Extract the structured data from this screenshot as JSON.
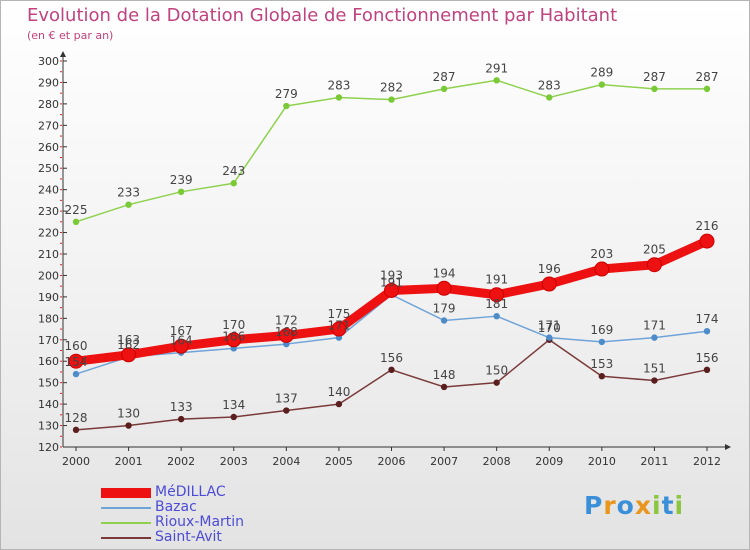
{
  "title": "Evolution de la Dotation Globale de Fonctionnement par Habitant",
  "subtitle": "(en € et par an)",
  "logo": {
    "letters": [
      "P",
      "r",
      "o",
      "x",
      "i",
      "t",
      "i"
    ]
  },
  "chart_data": {
    "type": "line",
    "title": "Evolution de la Dotation Globale de Fonctionnement par Habitant",
    "ylabel": "(en € et par an)",
    "xlabel": "",
    "ylim": [
      120,
      300
    ],
    "grid": false,
    "x": [
      "2000",
      "2001",
      "2002",
      "2003",
      "2004",
      "2005",
      "2006",
      "2007",
      "2008",
      "2009",
      "2010",
      "2011",
      "2012"
    ],
    "yticks": [
      120,
      130,
      140,
      150,
      160,
      170,
      180,
      190,
      200,
      210,
      220,
      230,
      240,
      250,
      260,
      270,
      280,
      290,
      300
    ],
    "series": [
      {
        "name": "Rioux-Martin",
        "color": "#8fd14f",
        "marker": "#7ac936",
        "values": [
          225,
          233,
          239,
          243,
          279,
          283,
          282,
          287,
          291,
          283,
          289,
          287,
          287
        ]
      },
      {
        "name": "Saint-Avit",
        "color": "#7a3a3a",
        "marker": "#5a1e1e",
        "values": [
          128,
          130,
          133,
          134,
          137,
          140,
          156,
          148,
          150,
          170,
          153,
          151,
          156
        ]
      },
      {
        "name": "Bazac",
        "color": "#6fa4d8",
        "marker": "#4d8cc9",
        "values": [
          154,
          162,
          164,
          166,
          168,
          171,
          191,
          179,
          181,
          171,
          169,
          171,
          174
        ]
      },
      {
        "name": "MéDILLAC",
        "color": "#ee1111",
        "marker": "#ee1111",
        "values": [
          160,
          163,
          167,
          170,
          172,
          175,
          193,
          194,
          191,
          196,
          203,
          205,
          216
        ]
      }
    ],
    "legend": {
      "position": "bottom-left",
      "entries": [
        {
          "label": "MéDILLAC",
          "color": "#ee1111"
        },
        {
          "label": "Bazac",
          "color": "#6fa4d8"
        },
        {
          "label": "Rioux-Martin",
          "color": "#8fd14f"
        },
        {
          "label": "Saint-Avit",
          "color": "#7a3a3a"
        }
      ]
    }
  }
}
